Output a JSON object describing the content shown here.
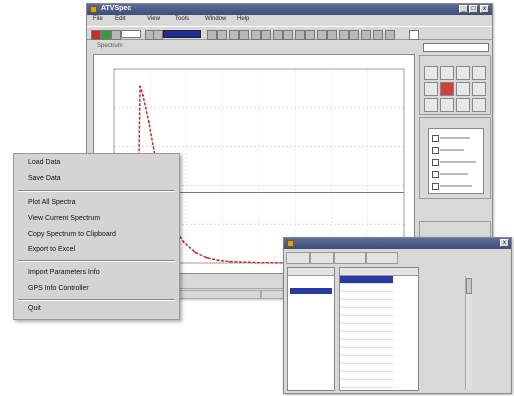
{
  "main_window": {
    "title": "ATVSpec",
    "title_buttons": [
      "_",
      "□",
      "x"
    ],
    "menu": [
      "File",
      "Edit",
      "View",
      "Tools",
      "Window",
      "Help"
    ],
    "secondary_label": "Spectrum",
    "colors": {
      "title_bar": "#4a5a88",
      "plot_line": "#d02020",
      "selection": "#2a3aa5"
    }
  },
  "chart_data": {
    "type": "line",
    "title": "",
    "xlabel": "",
    "ylabel": "",
    "grid": true,
    "x": [
      0,
      1,
      2,
      3,
      4,
      5,
      6,
      7,
      8,
      9,
      10,
      12,
      14,
      16,
      18,
      20,
      24,
      28,
      32,
      36,
      40,
      50,
      60,
      70,
      80,
      90,
      100
    ],
    "series": [
      {
        "values": [
          0,
          0,
          0,
          0,
          0,
          0,
          0,
          0,
          0,
          100,
          95,
          80,
          62,
          45,
          32,
          22,
          12,
          6,
          3,
          1.5,
          0.8,
          0.2,
          0.1,
          0,
          0,
          0,
          0
        ]
      }
    ],
    "xlim": [
      0,
      100
    ],
    "ylim": [
      0,
      110
    ]
  },
  "side_panel": {
    "dropdown_value": "",
    "tools_title": "",
    "options_title": "",
    "misc_title": ""
  },
  "popup_menu": {
    "groups": [
      [
        "Load Data",
        "Save Data"
      ],
      [
        "Plot All Spectra",
        "View Current Spectrum",
        "Copy Spectrum to Clipboard",
        "Export to Excel"
      ],
      [
        "Import Parameters Info",
        "GPS Info Controller"
      ],
      [
        "Quit"
      ]
    ]
  },
  "dialog": {
    "title": "",
    "toolbar": [
      "",
      "",
      "",
      ""
    ],
    "left_header": "",
    "left_rows": [
      "",
      "",
      "",
      "",
      ""
    ],
    "right_header": "",
    "right_rows": [
      "",
      "",
      "",
      "",
      "",
      "",
      "",
      "",
      "",
      "",
      "",
      "",
      "",
      ""
    ]
  }
}
